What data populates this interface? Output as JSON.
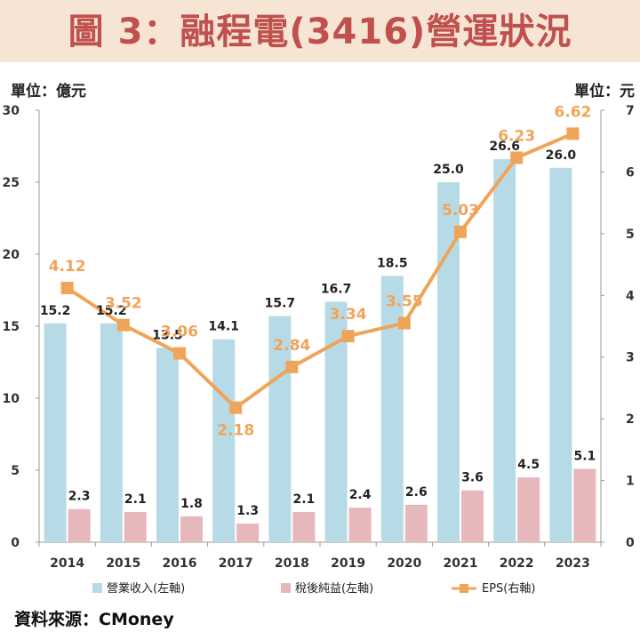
{
  "title": "圖 3：融程電(3416)營運狀況",
  "unit_left": "單位：億元",
  "unit_right": "單位：元",
  "source": "資料來源：CMoney",
  "colors": {
    "revenue": "#b7dbe6",
    "net_income": "#e6b8bc",
    "eps": "#f0a45a",
    "title": "#c0504d",
    "title_bg": "#f6e4d4"
  },
  "chart_data": {
    "type": "bar",
    "categories": [
      "2014",
      "2015",
      "2016",
      "2017",
      "2018",
      "2019",
      "2020",
      "2021",
      "2022",
      "2023"
    ],
    "series": [
      {
        "name": "營業收入(左軸)",
        "type": "bar",
        "axis": "left",
        "values": [
          15.2,
          15.2,
          13.5,
          14.1,
          15.7,
          16.7,
          18.5,
          25.0,
          26.6,
          26.0
        ],
        "labels": [
          "15.2",
          "15.2",
          "13.5",
          "14.1",
          "15.7",
          "16.7",
          "18.5",
          "25.0",
          "26.6",
          "26.0"
        ]
      },
      {
        "name": "稅後純益(左軸)",
        "type": "bar",
        "axis": "left",
        "values": [
          2.3,
          2.1,
          1.8,
          1.3,
          2.1,
          2.4,
          2.6,
          3.6,
          4.5,
          5.1
        ],
        "labels": [
          "2.3",
          "2.1",
          "1.8",
          "1.3",
          "2.1",
          "2.4",
          "2.6",
          "3.6",
          "4.5",
          "5.1"
        ]
      },
      {
        "name": "EPS(右軸)",
        "type": "line",
        "axis": "right",
        "values": [
          4.12,
          3.52,
          3.06,
          2.18,
          2.84,
          3.34,
          3.55,
          5.03,
          6.23,
          6.62
        ],
        "labels": [
          "4.12",
          "3.52",
          "3.06",
          "2.18",
          "2.84",
          "3.34",
          "3.55",
          "5.03",
          "6.23",
          "6.62"
        ]
      }
    ],
    "ylim_left": [
      0,
      30
    ],
    "yticks_left": [
      "0",
      "5",
      "10",
      "15",
      "20",
      "25",
      "30"
    ],
    "ylim_right": [
      0,
      7
    ],
    "yticks_right": [
      "0",
      "1",
      "2",
      "3",
      "4",
      "5",
      "6",
      "7"
    ],
    "grid": false,
    "legend_position": "bottom"
  }
}
